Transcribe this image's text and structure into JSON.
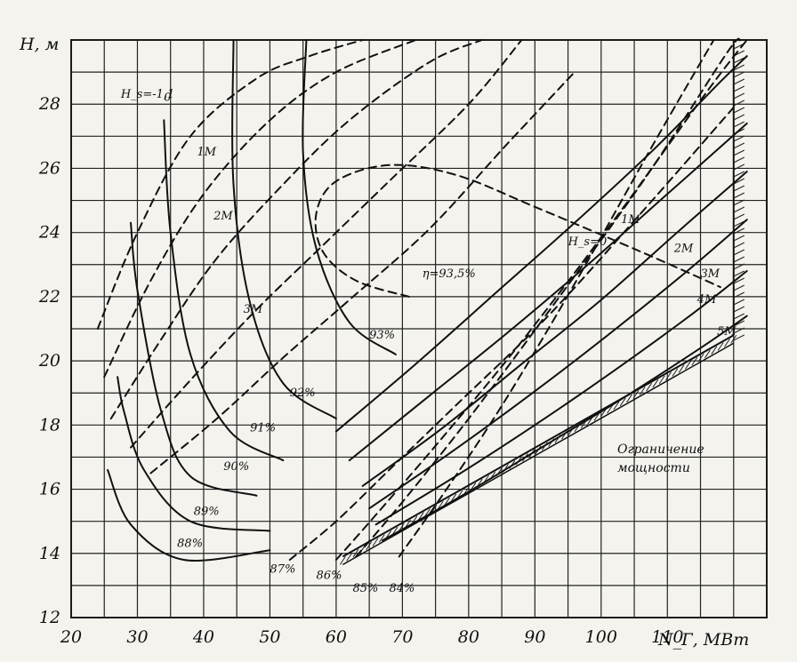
{
  "chart_data": {
    "type": "line",
    "title": "",
    "xlabel": "N_Г, МВт",
    "ylabel": "H, м",
    "xlim": [
      20,
      125
    ],
    "ylim": [
      12,
      30
    ],
    "x_ticks": [
      "20",
      "30",
      "40",
      "50",
      "60",
      "70",
      "80",
      "90",
      "100",
      "110"
    ],
    "y_ticks": [
      "12",
      "14",
      "16",
      "18",
      "20",
      "22",
      "24",
      "26",
      "28"
    ],
    "grid": true,
    "power_limit_label": [
      "Ограничение",
      "мощности"
    ],
    "power_limit_line": {
      "x": [
        61,
        120
      ],
      "y": [
        13.9,
        20.8
      ]
    },
    "series": [
      {
        "name": "η=93,5%",
        "style": "dashed",
        "label_xy": [
          73,
          22.6
        ],
        "x": [
          71,
          63,
          58,
          57,
          60,
          68,
          78,
          90,
          106,
          118
        ],
        "y": [
          22,
          22.5,
          23.4,
          24.6,
          25.6,
          26.1,
          25.8,
          24.8,
          23.4,
          22.3
        ]
      },
      {
        "name": "93%",
        "style": "solid",
        "label_xy": [
          65,
          20.7
        ],
        "x": [
          69,
          62,
          57,
          55,
          55.5
        ],
        "y": [
          20.2,
          21.2,
          23.5,
          26.5,
          30
        ]
      },
      {
        "name": "92%",
        "style": "solid",
        "label_xy": [
          53,
          18.9
        ],
        "x": [
          60,
          52,
          47,
          44.5,
          44.5
        ],
        "y": [
          18.2,
          19.3,
          21.8,
          25.5,
          30
        ]
      },
      {
        "name": "91%",
        "style": "solid",
        "label_xy": [
          47,
          17.8
        ],
        "x": [
          52,
          44,
          38,
          35,
          34
        ],
        "y": [
          16.9,
          17.8,
          20.2,
          24,
          27.5
        ]
      },
      {
        "name": "90%",
        "style": "solid",
        "label_xy": [
          43,
          16.6
        ],
        "x": [
          48,
          38,
          33.5,
          30,
          29
        ],
        "y": [
          15.8,
          16.4,
          18.5,
          22.2,
          24.3
        ]
      },
      {
        "name": "89%",
        "style": "solid",
        "label_xy": [
          38.5,
          15.2
        ],
        "x": [
          50,
          38,
          31,
          28,
          27
        ],
        "y": [
          14.7,
          15,
          16.6,
          18.4,
          19.5
        ]
      },
      {
        "name": "88%",
        "style": "solid",
        "label_xy": [
          36,
          14.2
        ],
        "x": [
          50,
          37,
          29,
          25.5
        ],
        "y": [
          14.1,
          13.8,
          14.9,
          16.6
        ]
      },
      {
        "name": "87%",
        "style": "dashed",
        "label_xy": [
          50,
          13.4
        ],
        "x": [
          53,
          60,
          68,
          78,
          92,
          106,
          120
        ],
        "y": [
          13.8,
          15,
          16.6,
          18.6,
          21.4,
          24.6,
          27.9
        ]
      },
      {
        "name": "86%",
        "style": "dashed",
        "label_xy": [
          57,
          13.2
        ],
        "x": [
          60,
          66,
          76,
          88,
          102,
          116,
          122
        ],
        "y": [
          13.8,
          15.2,
          17.6,
          20.6,
          24.4,
          28.4,
          30
        ]
      },
      {
        "name": "85%",
        "style": "dashed",
        "label_xy": [
          62.5,
          12.8
        ],
        "x": [
          63,
          70,
          80,
          93,
          107,
          119,
          121
        ],
        "y": [
          13.9,
          15.6,
          18.2,
          21.8,
          25.8,
          29.6,
          30
        ]
      },
      {
        "name": "84%",
        "style": "dashed",
        "label_xy": [
          68,
          12.8
        ],
        "x": [
          69.5,
          76,
          85,
          96,
          108,
          117
        ],
        "y": [
          13.9,
          15.8,
          18.6,
          22.4,
          26.8,
          30
        ]
      },
      {
        "name": "H_s=-1,1",
        "style": "dashed",
        "label_xy": [
          27.5,
          28.2
        ],
        "x": [
          24,
          30,
          38,
          48,
          56,
          64
        ],
        "y": [
          21,
          24,
          27,
          28.8,
          29.5,
          30
        ]
      },
      {
        "name": "0",
        "style": "dashed",
        "label_xy": [
          34,
          28.1
        ],
        "x": [
          25,
          32,
          40,
          50,
          60,
          72
        ],
        "y": [
          19.5,
          22.5,
          25.2,
          27.5,
          29,
          30
        ]
      },
      {
        "name": "1M",
        "style": "dashed",
        "label_xy": [
          39,
          26.4
        ],
        "x": [
          26,
          34,
          42,
          52,
          62,
          74,
          82
        ],
        "y": [
          18.2,
          20.8,
          23.2,
          25.5,
          27.5,
          29.3,
          30
        ]
      },
      {
        "name": "2M",
        "style": "dashed",
        "label_xy": [
          41.5,
          24.4
        ],
        "x": [
          29,
          38,
          48,
          58,
          68,
          80,
          88
        ],
        "y": [
          17.3,
          19.4,
          21.6,
          23.6,
          25.6,
          28,
          30
        ]
      },
      {
        "name": "3M",
        "style": "dashed",
        "label_xy": [
          46,
          21.5
        ],
        "x": [
          32,
          42,
          52,
          62,
          74,
          86,
          96
        ],
        "y": [
          16.5,
          18.2,
          20.1,
          21.9,
          24.1,
          26.8,
          29
        ]
      },
      {
        "name": "H_s=0",
        "style": "solid",
        "label_xy": [
          95,
          23.6
        ],
        "x": [
          60,
          72,
          84,
          96,
          108,
          118,
          122
        ],
        "y": [
          17.8,
          19.9,
          22.1,
          24.3,
          26.6,
          28.7,
          29.5
        ]
      },
      {
        "name": "1M",
        "style": "solid",
        "label_xy": [
          103,
          24.3
        ],
        "x": [
          62,
          74,
          86,
          98,
          110,
          122
        ],
        "y": [
          16.9,
          18.9,
          20.9,
          23,
          25.2,
          27.4
        ]
      },
      {
        "name": "2M",
        "style": "solid",
        "label_xy": [
          111,
          23.4
        ],
        "x": [
          64,
          76,
          88,
          100,
          112,
          122
        ],
        "y": [
          16.1,
          17.9,
          19.9,
          21.9,
          24.1,
          25.9
        ]
      },
      {
        "name": "3M",
        "style": "solid",
        "label_xy": [
          115,
          22.6
        ],
        "x": [
          65,
          77,
          89,
          101,
          113,
          122
        ],
        "y": [
          15.4,
          17.1,
          18.9,
          20.8,
          22.8,
          24.4
        ]
      },
      {
        "name": "4M",
        "style": "solid",
        "label_xy": [
          114.5,
          21.8
        ],
        "x": [
          66,
          78,
          90,
          102,
          114,
          122
        ],
        "y": [
          14.9,
          16.4,
          18,
          19.7,
          21.5,
          22.8
        ]
      },
      {
        "name": "5M",
        "style": "solid",
        "label_xy": [
          117.5,
          20.8
        ],
        "x": [
          67,
          79,
          91,
          103,
          115,
          122
        ],
        "y": [
          14.4,
          15.8,
          17.3,
          18.8,
          20.4,
          21.4
        ]
      }
    ]
  }
}
